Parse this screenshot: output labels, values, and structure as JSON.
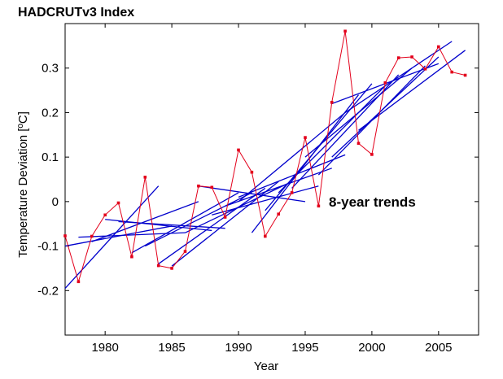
{
  "chart_data": {
    "type": "line",
    "title": "HADCRUTv3 Index",
    "xlabel": "Year",
    "ylabel": "Temperature Deviation [ºC]",
    "annotation": "8-year trends",
    "xlim": [
      1977,
      2008
    ],
    "ylim": [
      -0.3,
      0.4
    ],
    "xticks": [
      1980,
      1985,
      1990,
      1995,
      2000,
      2005
    ],
    "xtick_labels": [
      "1980",
      "1985",
      "1990",
      "1995",
      "2000",
      "2005"
    ],
    "yticks": [
      -0.2,
      -0.1,
      0,
      0.1,
      0.2,
      0.3
    ],
    "ytick_labels": [
      "-0.2",
      "-0.1",
      "0",
      "0.1",
      "0.2",
      "0.3"
    ],
    "grid": false,
    "colors": {
      "series": "#e3001b",
      "trend": "#0000cc",
      "axes": "#000000"
    },
    "series": [
      {
        "x": [
          1977,
          1978,
          1979,
          1980,
          1981,
          1982,
          1983,
          1984,
          1985,
          1986,
          1987,
          1988,
          1989,
          1990,
          1991,
          1992,
          1993,
          1994,
          1995,
          1996,
          1997,
          1998,
          1999,
          2000,
          2001,
          2002,
          2003,
          2004,
          2005,
          2006,
          2007
        ],
        "y": [
          -0.077,
          -0.18,
          -0.078,
          -0.03,
          -0.003,
          -0.124,
          0.055,
          -0.144,
          -0.15,
          -0.112,
          0.035,
          0.032,
          -0.035,
          0.116,
          0.066,
          -0.078,
          -0.028,
          0.02,
          0.144,
          -0.01,
          0.223,
          0.383,
          0.131,
          0.106,
          0.267,
          0.323,
          0.325,
          0.298,
          0.348,
          0.291,
          0.284
        ]
      }
    ],
    "trends": [
      {
        "x": [
          1977,
          1984
        ],
        "y": [
          -0.195,
          0.035
        ]
      },
      {
        "x": [
          1977,
          1985
        ],
        "y": [
          -0.1,
          -0.055
        ]
      },
      {
        "x": [
          1978,
          1986
        ],
        "y": [
          -0.08,
          -0.07
        ]
      },
      {
        "x": [
          1979,
          1987
        ],
        "y": [
          -0.09,
          0.0
        ]
      },
      {
        "x": [
          1980,
          1988
        ],
        "y": [
          -0.04,
          -0.065
        ]
      },
      {
        "x": [
          1981,
          1989
        ],
        "y": [
          -0.045,
          -0.06
        ]
      },
      {
        "x": [
          1982,
          1990
        ],
        "y": [
          -0.115,
          0.02
        ]
      },
      {
        "x": [
          1983,
          1991
        ],
        "y": [
          -0.1,
          0.02
        ]
      },
      {
        "x": [
          1984,
          1992
        ],
        "y": [
          -0.14,
          0.03
        ]
      },
      {
        "x": [
          1985,
          1993
        ],
        "y": [
          -0.145,
          0.045
        ]
      },
      {
        "x": [
          1986,
          1994
        ],
        "y": [
          -0.07,
          0.045
        ]
      },
      {
        "x": [
          1987,
          1995
        ],
        "y": [
          0.035,
          0.0
        ]
      },
      {
        "x": [
          1988,
          1996
        ],
        "y": [
          -0.03,
          0.035
        ]
      },
      {
        "x": [
          1989,
          1997
        ],
        "y": [
          -0.01,
          0.075
        ]
      },
      {
        "x": [
          1990,
          1998
        ],
        "y": [
          0.01,
          0.105
        ]
      },
      {
        "x": [
          1990,
          1998
        ],
        "y": [
          0.0,
          0.2
        ]
      },
      {
        "x": [
          1991,
          1999
        ],
        "y": [
          -0.07,
          0.24
        ]
      },
      {
        "x": [
          1992,
          2000
        ],
        "y": [
          -0.02,
          0.265
        ]
      },
      {
        "x": [
          1993,
          2001
        ],
        "y": [
          0.02,
          0.26
        ]
      },
      {
        "x": [
          1994,
          2002
        ],
        "y": [
          0.03,
          0.285
        ]
      },
      {
        "x": [
          1995,
          2003
        ],
        "y": [
          0.1,
          0.3
        ]
      },
      {
        "x": [
          1996,
          2004
        ],
        "y": [
          0.06,
          0.305
        ]
      },
      {
        "x": [
          1997,
          2005
        ],
        "y": [
          0.1,
          0.325
        ]
      },
      {
        "x": [
          1997,
          2005
        ],
        "y": [
          0.22,
          0.31
        ]
      },
      {
        "x": [
          1998,
          2006
        ],
        "y": [
          0.2,
          0.36
        ]
      },
      {
        "x": [
          1999,
          2007
        ],
        "y": [
          0.16,
          0.34
        ]
      }
    ]
  }
}
